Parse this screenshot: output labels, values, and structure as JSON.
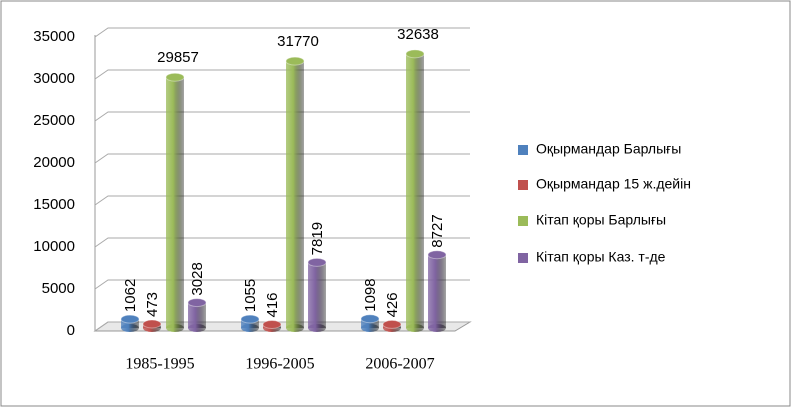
{
  "chart_data": {
    "type": "bar",
    "categories": [
      "1985-1995",
      "1996-2005",
      "2006-2007"
    ],
    "series": [
      {
        "name": "Оқырмандар Барлығы",
        "color": "#4f81bd",
        "values": [
          1062,
          1055,
          1098
        ]
      },
      {
        "name": "Оқырмандар 15 ж.дейін",
        "color": "#c0504d",
        "values": [
          473,
          416,
          426
        ]
      },
      {
        "name": "Кітап қоры Барлығы",
        "color": "#9bbb59",
        "values": [
          29857,
          31770,
          32638
        ]
      },
      {
        "name": "Кітап қоры Каз. т-де",
        "color": "#8064a2",
        "values": [
          3028,
          7819,
          8727
        ]
      }
    ],
    "ylim": [
      0,
      35000
    ],
    "yticks": [
      0,
      5000,
      10000,
      15000,
      20000,
      25000,
      30000,
      35000
    ],
    "grid": true,
    "legend": "right"
  }
}
